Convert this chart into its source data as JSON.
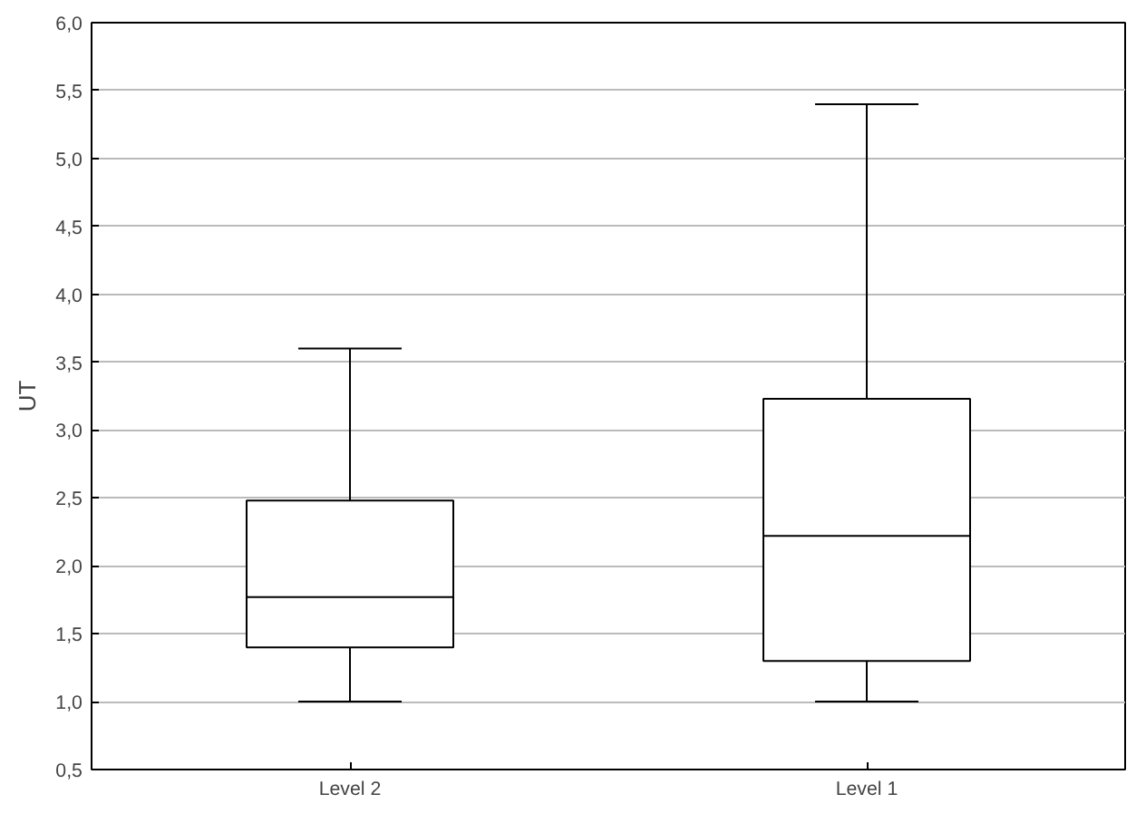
{
  "chart_data": {
    "type": "box",
    "ylabel": "UT",
    "categories": [
      "Level 2",
      "Level 1"
    ],
    "boxes": [
      {
        "low": 1.0,
        "q1": 1.4,
        "median": 1.77,
        "q3": 2.48,
        "high": 3.6
      },
      {
        "low": 1.0,
        "q1": 1.3,
        "median": 2.22,
        "q3": 3.23,
        "high": 5.4
      }
    ],
    "ylim": [
      0.5,
      6.0
    ],
    "yticks": [
      {
        "value": 0.5,
        "label": "0,5"
      },
      {
        "value": 1.0,
        "label": "1,0"
      },
      {
        "value": 1.5,
        "label": "1,5"
      },
      {
        "value": 2.0,
        "label": "2,0"
      },
      {
        "value": 2.5,
        "label": "2,5"
      },
      {
        "value": 3.0,
        "label": "3,0"
      },
      {
        "value": 3.5,
        "label": "3,5"
      },
      {
        "value": 4.0,
        "label": "4,0"
      },
      {
        "value": 4.5,
        "label": "4,5"
      },
      {
        "value": 5.0,
        "label": "5,0"
      },
      {
        "value": 5.5,
        "label": "5,5"
      },
      {
        "value": 6.0,
        "label": "6,0"
      }
    ],
    "grid": "y"
  }
}
